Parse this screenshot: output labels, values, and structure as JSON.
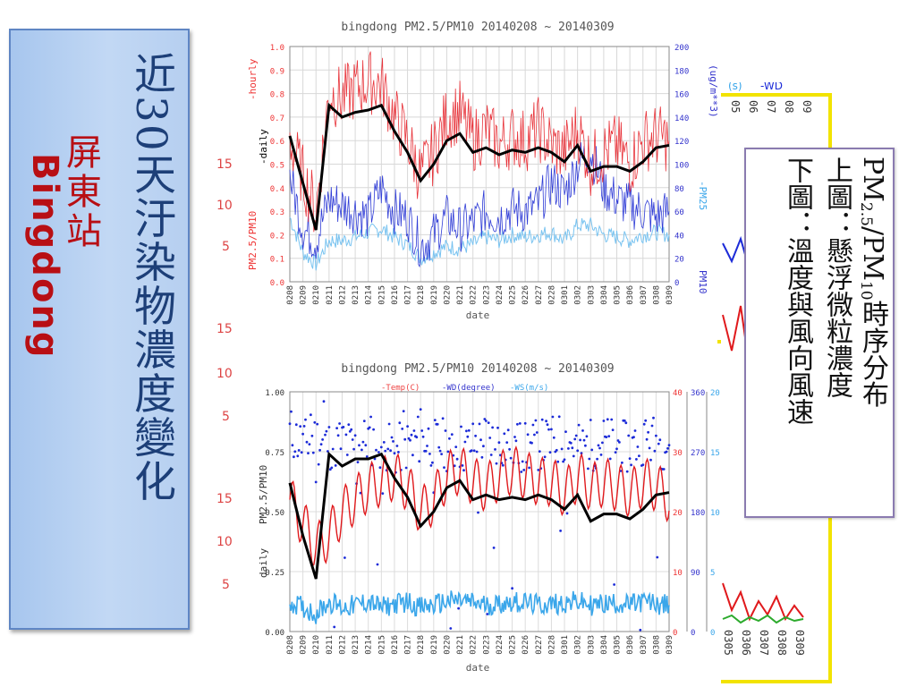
{
  "slide": {
    "title_main": "近30天汙染物濃度變化",
    "title_sub_zh": "屏東站",
    "title_sub_en": "Bingdong",
    "callout_line1_pre": "PM",
    "callout_line1_sub1": "2.5",
    "callout_line1_mid": "/PM",
    "callout_line1_sub2": "10",
    "callout_line1_post": "時序分布",
    "callout_line2": "上圖：懸浮微粒濃度",
    "callout_line3": "下圖：溫度與風向風速",
    "left_bg_numbers": [
      "15",
      "10",
      "5",
      "15",
      "10",
      "5",
      "15",
      "10",
      "5"
    ],
    "right_bg_labels": [
      "(s)",
      "-WD",
      "05",
      "06",
      "07",
      "08",
      "09",
      "0305",
      "0306",
      "0307",
      "0308",
      "0309",
      "10",
      "5",
      "0",
      "180",
      "90",
      "0"
    ],
    "colors": {
      "hourly": "#e8333a",
      "daily": "#000000",
      "pm10": "#2f3cd6",
      "pm25": "#79c3f0",
      "temp": "#e0191c",
      "wd": "#1c2bd8",
      "ws": "#3aa6ea",
      "sidebar": "#b6cff0",
      "title": "#1d3f78",
      "subtitle": "#b80f14",
      "frame": "#f2e300"
    }
  },
  "chart_data": [
    {
      "type": "line",
      "title": "bingdong PM2.5/PM10 20140208 ~ 20140309",
      "xlabel": "date",
      "ylabel_left_parts": [
        "PM2.5/PM10",
        "-daily",
        "-hourly"
      ],
      "ylabel_right_parts": [
        "PM10",
        "-PM25",
        "(ug/m**3)"
      ],
      "x_ticks": [
        "0208",
        "0209",
        "0210",
        "0211",
        "0212",
        "0213",
        "0214",
        "0215",
        "0216",
        "0217",
        "0218",
        "0219",
        "0220",
        "0221",
        "0222",
        "0223",
        "0224",
        "0225",
        "0226",
        "0227",
        "0228",
        "0301",
        "0302",
        "0303",
        "0304",
        "0305",
        "0306",
        "0307",
        "0308",
        "0309"
      ],
      "ylim_left": [
        0,
        1.0
      ],
      "y_ticks_left": [
        "0.0",
        "0.1",
        "0.2",
        "0.3",
        "0.4",
        "0.5",
        "0.6",
        "0.7",
        "0.8",
        "0.9",
        "1.0"
      ],
      "ylim_right": [
        0,
        200
      ],
      "y_ticks_right": [
        "0",
        "20",
        "40",
        "60",
        "80",
        "100",
        "120",
        "140",
        "160",
        "180",
        "200"
      ],
      "grid": true,
      "series": [
        {
          "name": "daily",
          "axis": "left",
          "values": [
            0.62,
            0.42,
            0.22,
            0.75,
            0.7,
            0.72,
            0.73,
            0.75,
            0.64,
            0.55,
            0.43,
            0.5,
            0.6,
            0.63,
            0.55,
            0.57,
            0.54,
            0.56,
            0.55,
            0.57,
            0.55,
            0.51,
            0.58,
            0.47,
            0.49,
            0.49,
            0.47,
            0.51,
            0.57,
            0.58
          ]
        },
        {
          "name": "hourly",
          "axis": "left",
          "values": [
            0.6,
            0.45,
            0.3,
            0.8,
            0.78,
            0.82,
            0.85,
            0.84,
            0.7,
            0.6,
            0.45,
            0.55,
            0.7,
            0.72,
            0.6,
            0.65,
            0.58,
            0.62,
            0.6,
            0.65,
            0.58,
            0.55,
            0.65,
            0.5,
            0.55,
            0.58,
            0.5,
            0.6,
            0.62,
            0.6
          ]
        },
        {
          "name": "PM10",
          "axis": "right",
          "values": [
            90,
            45,
            35,
            70,
            65,
            60,
            55,
            80,
            60,
            55,
            30,
            40,
            55,
            45,
            50,
            60,
            55,
            62,
            60,
            65,
            85,
            75,
            100,
            110,
            80,
            70,
            65,
            60,
            55,
            60
          ]
        },
        {
          "name": "PM25",
          "axis": "right",
          "values": [
            55,
            25,
            15,
            35,
            35,
            38,
            42,
            45,
            38,
            32,
            20,
            25,
            30,
            28,
            32,
            38,
            35,
            40,
            38,
            40,
            42,
            35,
            48,
            48,
            40,
            38,
            35,
            40,
            42,
            40
          ]
        }
      ]
    },
    {
      "type": "line",
      "title": "bingdong PM2.5/PM10 20140208 ~ 20140309",
      "legend_parts": [
        "-Temp(C)",
        "-WD(degree)",
        "-WS(m/s)"
      ],
      "xlabel": "date",
      "ylabel_left_parts": [
        "daily",
        "PM2.5/PM10"
      ],
      "x_ticks": [
        "0208",
        "0209",
        "0210",
        "0211",
        "0212",
        "0213",
        "0214",
        "0215",
        "0216",
        "0217",
        "0218",
        "0219",
        "0220",
        "0221",
        "0222",
        "0223",
        "0224",
        "0225",
        "0226",
        "0227",
        "0228",
        "0301",
        "0302",
        "0303",
        "0304",
        "0305",
        "0306",
        "0307",
        "0308",
        "0309"
      ],
      "ylim_left": [
        0,
        1.0
      ],
      "y_ticks_left": [
        "0.00",
        "0.25",
        "0.50",
        "0.75",
        "1.00"
      ],
      "temp_ticks": [
        "0",
        "10",
        "20",
        "30",
        "40"
      ],
      "wd_ticks": [
        "0",
        "90",
        "180",
        "270",
        "360"
      ],
      "ws_ticks": [
        "0",
        "5",
        "10",
        "15",
        "20"
      ],
      "grid": true,
      "series": [
        {
          "name": "daily",
          "axis": "left",
          "values": [
            0.62,
            0.4,
            0.22,
            0.74,
            0.69,
            0.72,
            0.72,
            0.74,
            0.64,
            0.56,
            0.44,
            0.5,
            0.6,
            0.63,
            0.55,
            0.57,
            0.55,
            0.56,
            0.55,
            0.57,
            0.55,
            0.51,
            0.57,
            0.46,
            0.49,
            0.49,
            0.47,
            0.51,
            0.57,
            0.58
          ]
        },
        {
          "name": "Temp",
          "axis": "temp",
          "values": [
            22,
            18,
            14,
            16,
            20,
            22,
            24,
            25,
            26,
            24,
            20,
            22,
            26,
            27,
            25,
            24,
            26,
            27,
            26,
            25,
            25,
            23,
            26,
            24,
            25,
            24,
            23,
            25,
            24,
            22
          ]
        },
        {
          "name": "WD",
          "axis": "wd",
          "values": [
            300,
            280,
            290,
            280,
            285,
            275,
            290,
            280,
            270,
            280,
            290,
            285,
            280,
            275,
            280,
            290,
            285,
            280,
            275,
            280,
            285,
            290,
            275,
            280,
            285,
            280,
            275,
            290,
            285,
            280
          ]
        },
        {
          "name": "WS",
          "axis": "ws",
          "values": [
            2.5,
            2.0,
            1.5,
            2.5,
            2.0,
            2.2,
            2.5,
            2.0,
            2.3,
            2.5,
            2.0,
            2.2,
            2.5,
            2.6,
            2.4,
            2.2,
            2.3,
            2.5,
            2.4,
            2.2,
            2.3,
            2.4,
            2.5,
            2.2,
            2.3,
            2.4,
            2.2,
            2.5,
            2.3,
            2.2
          ]
        }
      ]
    }
  ]
}
